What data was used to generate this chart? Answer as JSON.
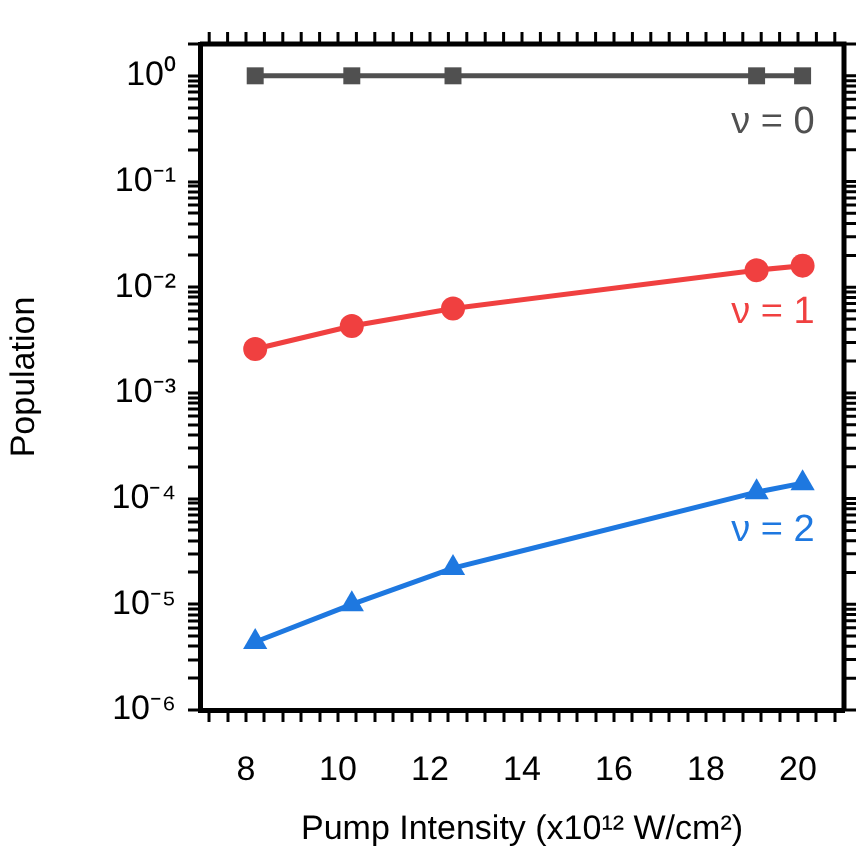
{
  "chart_data": {
    "type": "line",
    "xlabel": "Pump Intensity (x10¹² W/cm²)",
    "ylabel": "Population",
    "log": "y",
    "legend": false,
    "grid": false,
    "xlim": [
      7,
      21
    ],
    "xticks": [
      {
        "value": 7.2,
        "label": null
      },
      {
        "value": 7.6,
        "label": null
      },
      8,
      {
        "value": 8.4,
        "label": null
      },
      {
        "value": 8.8,
        "label": null
      },
      {
        "value": 9.2,
        "label": null
      },
      {
        "value": 9.6,
        "label": null
      },
      10,
      {
        "value": 10.4,
        "label": null
      },
      {
        "value": 10.8,
        "label": null
      },
      {
        "value": 11.2,
        "label": null
      },
      {
        "value": 11.6,
        "label": null
      },
      12,
      {
        "value": 12.4,
        "label": null
      },
      {
        "value": 12.8,
        "label": null
      },
      {
        "value": 13.2,
        "label": null
      },
      {
        "value": 13.6,
        "label": null
      },
      14,
      {
        "value": 14.4,
        "label": null
      },
      {
        "value": 14.8,
        "label": null
      },
      {
        "value": 15.2,
        "label": null
      },
      {
        "value": 15.6,
        "label": null
      },
      16,
      {
        "value": 16.4,
        "label": null
      },
      {
        "value": 16.8,
        "label": null
      },
      {
        "value": 17.2,
        "label": null
      },
      {
        "value": 17.6,
        "label": null
      },
      18,
      {
        "value": 18.4,
        "label": null
      },
      {
        "value": 18.8,
        "label": null
      },
      {
        "value": 19.2,
        "label": null
      },
      {
        "value": 19.6,
        "label": null
      },
      20,
      {
        "value": 20.4,
        "label": null
      },
      {
        "value": 20.8,
        "label": null
      }
    ],
    "ylim": [
      1e-06,
      2
    ],
    "yticks": [
      {
        "value": 1e-06,
        "label": "10⁻⁶"
      },
      {
        "value": 2e-06,
        "label": null
      },
      {
        "value": 3e-06,
        "label": null
      },
      {
        "value": 4e-06,
        "label": null
      },
      {
        "value": 5e-06,
        "label": null
      },
      {
        "value": 6e-06,
        "label": null
      },
      {
        "value": 7e-06,
        "label": null
      },
      {
        "value": 8e-06,
        "label": null
      },
      {
        "value": 9e-06,
        "label": null
      },
      {
        "value": 1e-05,
        "label": "10⁻⁵"
      },
      {
        "value": 2e-05,
        "label": null
      },
      {
        "value": 3e-05,
        "label": null
      },
      {
        "value": 4e-05,
        "label": null
      },
      {
        "value": 5e-05,
        "label": null
      },
      {
        "value": 6e-05,
        "label": null
      },
      {
        "value": 7e-05,
        "label": null
      },
      {
        "value": 8e-05,
        "label": null
      },
      {
        "value": 9e-05,
        "label": null
      },
      {
        "value": 0.0001,
        "label": "10⁻⁴"
      },
      {
        "value": 0.0002,
        "label": null
      },
      {
        "value": 0.0003,
        "label": null
      },
      {
        "value": 0.0004,
        "label": null
      },
      {
        "value": 0.0005,
        "label": null
      },
      {
        "value": 0.0006,
        "label": null
      },
      {
        "value": 0.0007,
        "label": null
      },
      {
        "value": 0.0008,
        "label": null
      },
      {
        "value": 0.0009,
        "label": null
      },
      {
        "value": 0.001,
        "label": "10⁻³"
      },
      {
        "value": 0.002,
        "label": null
      },
      {
        "value": 0.003,
        "label": null
      },
      {
        "value": 0.004,
        "label": null
      },
      {
        "value": 0.005,
        "label": null
      },
      {
        "value": 0.006,
        "label": null
      },
      {
        "value": 0.007,
        "label": null
      },
      {
        "value": 0.008,
        "label": null
      },
      {
        "value": 0.009,
        "label": null
      },
      {
        "value": 0.01,
        "label": "10⁻²"
      },
      {
        "value": 0.02,
        "label": null
      },
      {
        "value": 0.03,
        "label": null
      },
      {
        "value": 0.04,
        "label": null
      },
      {
        "value": 0.05,
        "label": null
      },
      {
        "value": 0.06,
        "label": null
      },
      {
        "value": 0.07,
        "label": null
      },
      {
        "value": 0.08,
        "label": null
      },
      {
        "value": 0.09,
        "label": null
      },
      {
        "value": 0.1,
        "label": "10⁻¹"
      },
      {
        "value": 0.2,
        "label": null
      },
      {
        "value": 0.3,
        "label": null
      },
      {
        "value": 0.4,
        "label": null
      },
      {
        "value": 0.5,
        "label": null
      },
      {
        "value": 0.6,
        "label": null
      },
      {
        "value": 0.7,
        "label": null
      },
      {
        "value": 0.8,
        "label": null
      },
      {
        "value": 0.9,
        "label": null
      },
      {
        "value": 1,
        "label": "10⁰"
      },
      {
        "value": 2,
        "label": null
      }
    ],
    "x": [
      8.2,
      10.3,
      12.5,
      19.1,
      20.1
    ],
    "series": [
      {
        "name": "ν = 0",
        "color": "#505050",
        "marker": "square",
        "values": [
          1,
          1,
          1,
          1,
          1
        ]
      },
      {
        "name": "ν = 1",
        "color": "#f04040",
        "marker": "circle",
        "values": [
          0.0026,
          0.0043,
          0.0063,
          0.0145,
          0.016
        ]
      },
      {
        "name": "ν = 2",
        "color": "#1e78e0",
        "marker": "triangle",
        "values": [
          4.4e-06,
          1e-05,
          2.2e-05,
          0.000115,
          0.00014
        ]
      }
    ]
  }
}
